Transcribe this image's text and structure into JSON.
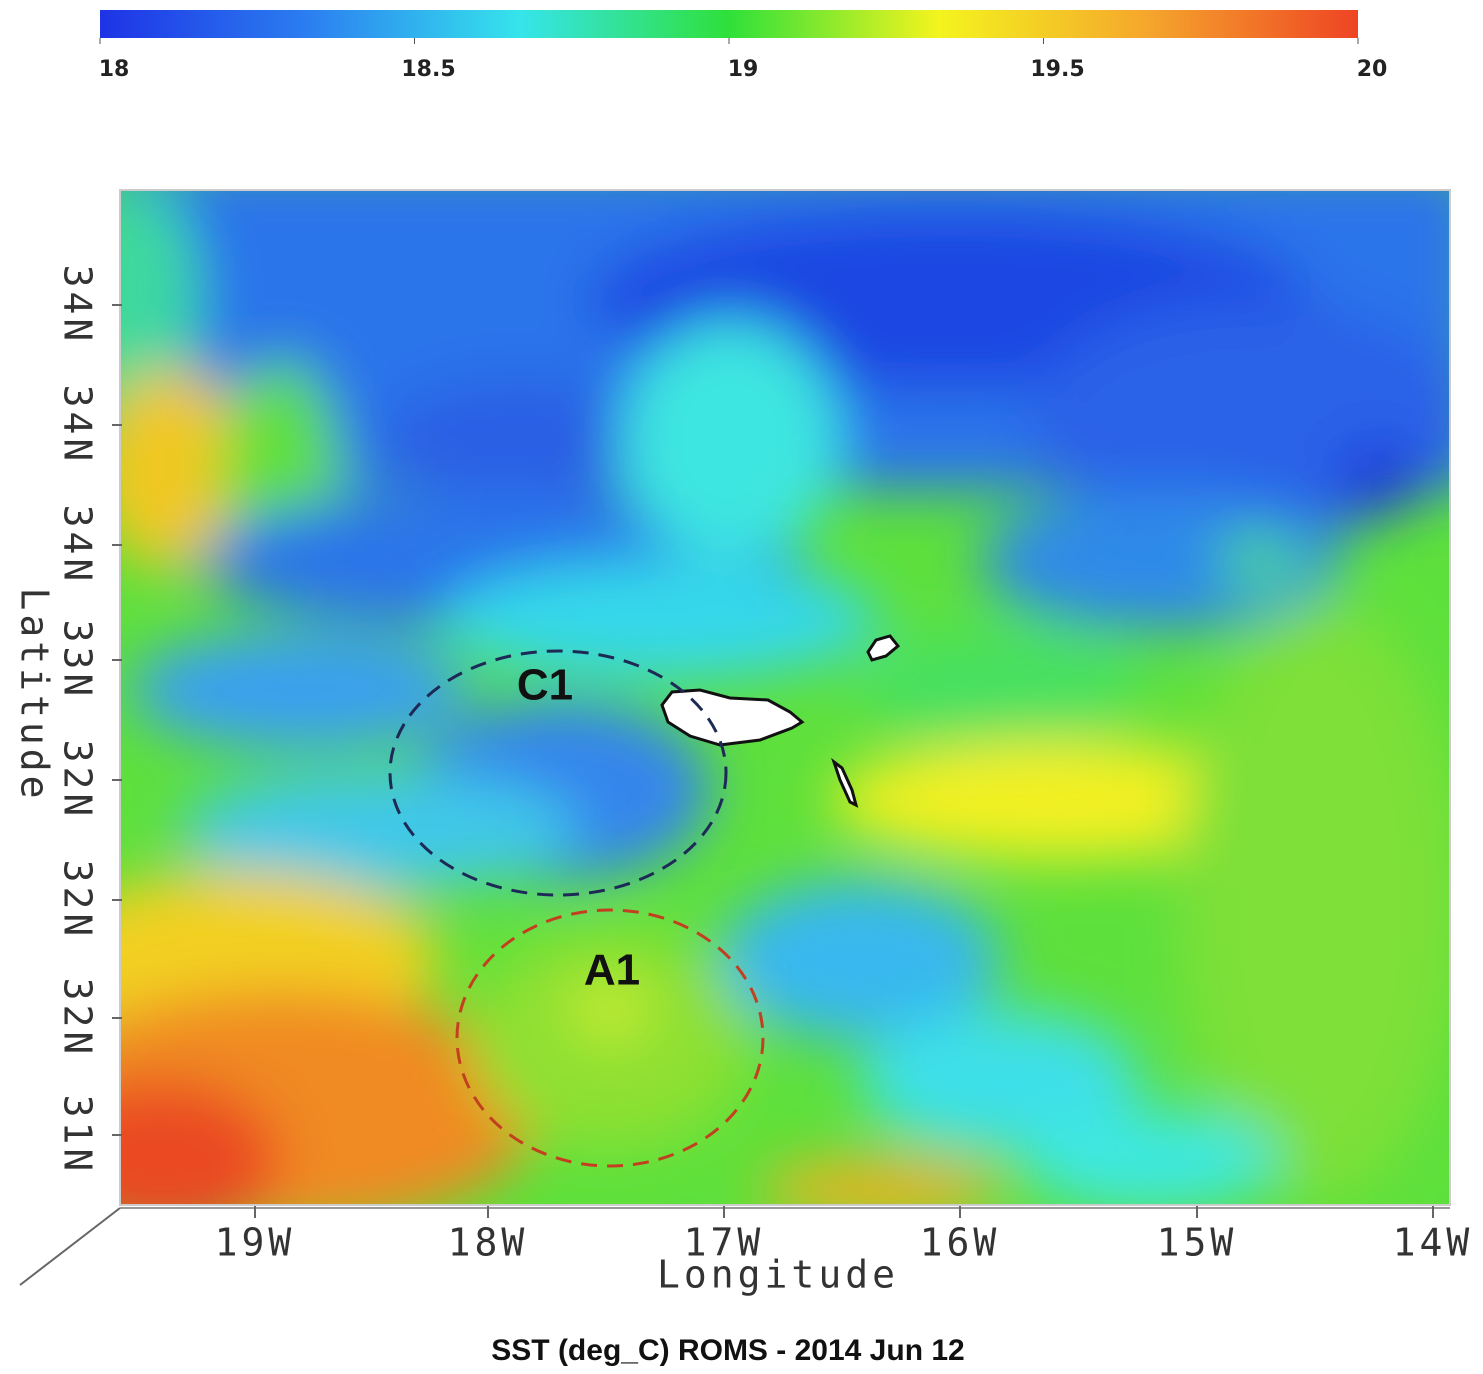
{
  "colorbar": {
    "ticks": [
      18,
      18.5,
      19,
      19.5,
      20
    ],
    "colors": [
      "#1e33e6",
      "#2b7ff0",
      "#36e4ec",
      "#2fe03a",
      "#f4f41e",
      "#f5a62c",
      "#ee4424"
    ]
  },
  "axes": {
    "y_title": "Latitude",
    "x_title": "Longitude",
    "y_labels": [
      "34N",
      "34N",
      "34N",
      "33N",
      "32N",
      "32N",
      "32N",
      "31N"
    ],
    "x_labels": [
      "19W",
      "18W",
      "17W",
      "16W",
      "15W",
      "14W"
    ]
  },
  "annotations": [
    "C1",
    "A1"
  ],
  "caption": "SST (deg_C) ROMS  - 2014 Jun 12"
}
